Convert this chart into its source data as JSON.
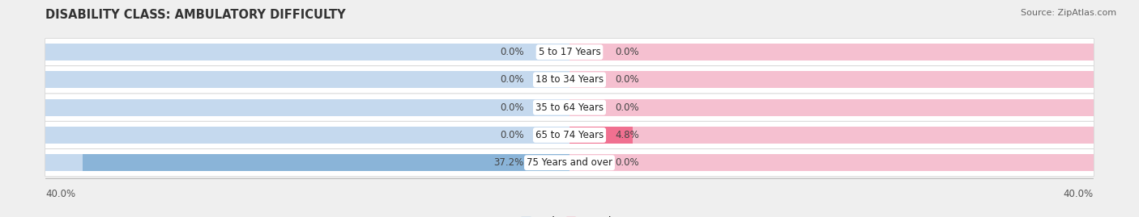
{
  "title": "DISABILITY CLASS: AMBULATORY DIFFICULTY",
  "source": "Source: ZipAtlas.com",
  "categories": [
    "5 to 17 Years",
    "18 to 34 Years",
    "35 to 64 Years",
    "65 to 74 Years",
    "75 Years and over"
  ],
  "male_values": [
    0.0,
    0.0,
    0.0,
    0.0,
    37.2
  ],
  "female_values": [
    0.0,
    0.0,
    0.0,
    4.8,
    0.0
  ],
  "male_color": "#8ab4d8",
  "female_color": "#f07090",
  "male_bg_color": "#c5d9ee",
  "female_bg_color": "#f5c0d0",
  "row_bg_color": "#e8e8e8",
  "axis_max": 40.0,
  "bg_color": "#efefef",
  "title_fontsize": 10.5,
  "label_fontsize": 8.5,
  "tick_fontsize": 8.5,
  "source_fontsize": 8,
  "cat_label_fontsize": 8.5
}
